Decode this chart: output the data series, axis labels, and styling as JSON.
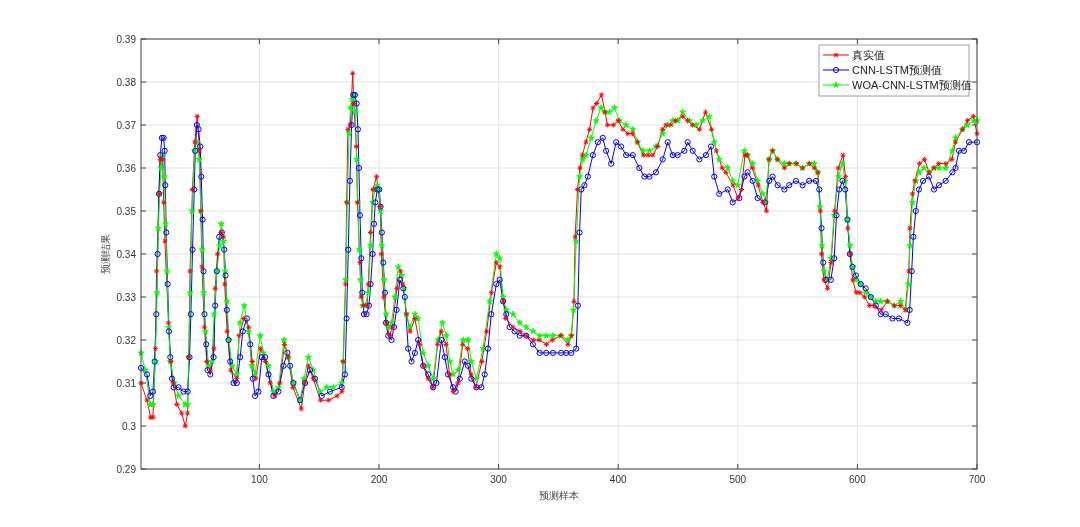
{
  "chart_data": {
    "type": "line",
    "xlabel": "预测样本",
    "ylabel": "预测结果",
    "xlim": [
      1,
      700
    ],
    "xticks": [
      100,
      200,
      300,
      400,
      500,
      600,
      700
    ],
    "ylim": [
      0.29,
      0.39
    ],
    "yticks": [
      0.29,
      0.3,
      0.31,
      0.32,
      0.33,
      0.34,
      0.35,
      0.36,
      0.37,
      0.38,
      0.39
    ],
    "grid": true,
    "legend": "top right",
    "line_style": "solid",
    "series": [
      {
        "name": "真实值",
        "color": "#ff0000",
        "marker": "cross",
        "x": [
          1,
          6,
          9,
          11,
          13,
          14,
          16,
          17,
          19,
          20,
          21,
          24,
          26,
          28,
          31,
          35,
          38,
          40,
          41,
          42,
          44,
          46,
          48,
          50,
          51,
          52,
          54,
          56,
          59,
          62,
          63,
          65,
          68,
          70,
          71,
          73,
          76,
          81,
          83,
          87,
          91,
          94,
          97,
          101,
          105,
          109,
          113,
          117,
          121,
          124,
          128,
          135,
          138,
          141,
          145,
          151,
          158,
          165,
          169,
          170,
          172,
          173,
          174,
          176,
          178,
          179,
          181,
          182,
          184,
          185,
          187,
          190,
          191,
          193,
          195,
          198,
          201,
          202,
          204,
          206,
          209,
          211,
          215,
          218,
          220,
          223,
          226,
          230,
          234,
          237,
          241,
          245,
          249,
          252,
          256,
          259,
          262,
          266,
          270,
          274,
          277,
          281,
          286,
          290,
          294,
          298,
          301,
          304,
          306,
          312,
          318,
          323,
          329,
          334,
          340,
          345,
          352,
          358,
          361,
          363,
          364,
          366,
          368,
          370,
          373,
          376,
          379,
          382,
          386,
          389,
          391,
          396,
          400,
          404,
          408,
          412,
          416,
          421,
          425,
          429,
          433,
          437,
          440,
          444,
          448,
          454,
          458,
          462,
          468,
          473,
          478,
          482,
          487,
          490,
          496,
          500,
          503,
          506,
          508,
          512,
          517,
          521,
          524,
          526,
          529,
          533,
          539,
          543,
          549,
          554,
          560,
          564,
          567,
          569,
          570,
          572,
          575,
          578,
          581,
          584,
          588,
          590,
          592,
          594,
          596,
          599,
          602,
          606,
          610,
          614,
          620,
          625,
          631,
          636,
          640,
          643,
          644,
          646,
          648,
          652,
          656,
          660,
          664,
          668,
          674,
          679,
          682,
          688,
          692,
          697,
          700
        ],
        "values": [
          0.31,
          0.306,
          0.302,
          0.302,
          0.318,
          0.336,
          0.354,
          0.362,
          0.362,
          0.352,
          0.343,
          0.324,
          0.315,
          0.31,
          0.305,
          0.303,
          0.3,
          0.303,
          0.316,
          0.336,
          0.355,
          0.366,
          0.372,
          0.364,
          0.35,
          0.337,
          0.323,
          0.315,
          0.313,
          0.318,
          0.332,
          0.34,
          0.345,
          0.344,
          0.333,
          0.322,
          0.313,
          0.311,
          0.321,
          0.325,
          0.323,
          0.315,
          0.311,
          0.318,
          0.315,
          0.31,
          0.307,
          0.31,
          0.319,
          0.316,
          0.309,
          0.304,
          0.31,
          0.314,
          0.311,
          0.306,
          0.306,
          0.307,
          0.308,
          0.315,
          0.333,
          0.352,
          0.369,
          0.37,
          0.382,
          0.375,
          0.365,
          0.352,
          0.338,
          0.33,
          0.328,
          0.328,
          0.333,
          0.345,
          0.355,
          0.358,
          0.351,
          0.34,
          0.33,
          0.324,
          0.321,
          0.323,
          0.332,
          0.336,
          0.333,
          0.326,
          0.322,
          0.325,
          0.319,
          0.314,
          0.311,
          0.309,
          0.319,
          0.322,
          0.319,
          0.312,
          0.308,
          0.31,
          0.319,
          0.318,
          0.312,
          0.309,
          0.315,
          0.322,
          0.331,
          0.338,
          0.337,
          0.329,
          0.325,
          0.323,
          0.322,
          0.321,
          0.32,
          0.32,
          0.319,
          0.32,
          0.321,
          0.319,
          0.321,
          0.329,
          0.344,
          0.355,
          0.36,
          0.363,
          0.366,
          0.369,
          0.374,
          0.375,
          0.377,
          0.373,
          0.37,
          0.37,
          0.371,
          0.369,
          0.368,
          0.368,
          0.366,
          0.363,
          0.363,
          0.363,
          0.365,
          0.369,
          0.37,
          0.37,
          0.371,
          0.372,
          0.371,
          0.37,
          0.369,
          0.373,
          0.369,
          0.364,
          0.36,
          0.359,
          0.356,
          0.353,
          0.355,
          0.363,
          0.363,
          0.36,
          0.356,
          0.352,
          0.35,
          0.362,
          0.364,
          0.362,
          0.36,
          0.361,
          0.361,
          0.36,
          0.361,
          0.36,
          0.359,
          0.35,
          0.34,
          0.334,
          0.332,
          0.338,
          0.35,
          0.36,
          0.363,
          0.358,
          0.346,
          0.34,
          0.334,
          0.331,
          0.331,
          0.33,
          0.328,
          0.328,
          0.327,
          0.329,
          0.328,
          0.328,
          0.327,
          0.336,
          0.346,
          0.354,
          0.357,
          0.361,
          0.362,
          0.359,
          0.36,
          0.361,
          0.361,
          0.362,
          0.366,
          0.369,
          0.371,
          0.372,
          0.368
        ]
      },
      {
        "name": "CNN-LSTM预测值",
        "color": "#0000ff",
        "marker": "circle",
        "x": [
          1,
          6,
          8.8,
          11,
          12.4,
          13.8,
          14.9,
          16,
          17.1,
          18.5,
          19.9,
          20.8,
          21.3,
          22.1,
          23.3,
          24.4,
          25.5,
          26.9,
          28.3,
          32.4,
          36.6,
          40,
          41.6,
          42.7,
          44.1,
          45.5,
          46.4,
          47.7,
          49.1,
          50.5,
          51.4,
          52.5,
          53.3,
          54.1,
          55.5,
          56.6,
          58.9,
          61.7,
          63,
          64.4,
          66.4,
          68.6,
          70.6,
          71.7,
          72.8,
          74.2,
          75.6,
          78.4,
          81.1,
          83.9,
          86.1,
          89.5,
          92.3,
          94.5,
          96.4,
          99.2,
          102,
          104.8,
          107.6,
          111.7,
          115.9,
          120.1,
          123.4,
          125.7,
          128.4,
          134,
          138.2,
          142.3,
          146.5,
          152.1,
          159,
          168.8,
          171.6,
          172.9,
          174.3,
          175.7,
          177.1,
          178.5,
          179.9,
          181.3,
          182.4,
          183.2,
          184.1,
          185.2,
          186,
          187.4,
          189.6,
          191.6,
          193,
          194.7,
          195.8,
          196.9,
          198.6,
          200.2,
          201.3,
          202.4,
          203.6,
          205,
          205.8,
          207.7,
          210.5,
          212.5,
          214.7,
          217.5,
          220.3,
          221.6,
          224.4,
          227.2,
          230,
          232.7,
          236.9,
          241.1,
          245.2,
          248,
          252.2,
          255,
          257.7,
          261.9,
          264.1,
          267.5,
          271.7,
          274.4,
          277.2,
          281.4,
          285.6,
          288.4,
          291.1,
          293.9,
          298.1,
          300.9,
          303.7,
          306.4,
          309.2,
          313.4,
          317.6,
          323.1,
          328.7,
          334.3,
          339.8,
          345.4,
          352.3,
          356.5,
          360.7,
          364.9,
          366.3,
          367.7,
          369.1,
          371.8,
          374.6,
          378.8,
          383,
          387.1,
          389.9,
          394.1,
          398.3,
          402.4,
          406.6,
          412.2,
          417.7,
          421.9,
          426.1,
          431.6,
          437.2,
          441.4,
          445.6,
          449.7,
          455.3,
          458.1,
          462.3,
          467.8,
          473.4,
          477.6,
          480.3,
          484.5,
          491.6,
          495.7,
          501.3,
          505.5,
          508.2,
          512.4,
          516.6,
          522.7,
          526.3,
          529.1,
          533.3,
          538.9,
          543,
          548.6,
          554.2,
          559.7,
          565.3,
          568.1,
          570,
          571.4,
          573.6,
          577.8,
          580.6,
          582.5,
          584.8,
          587.5,
          589.8,
          591.7,
          593.7,
          595.9,
          598.7,
          602.8,
          607,
          611.2,
          615.4,
          619.5,
          623.7,
          629.3,
          634.8,
          641.8,
          643.7,
          645.4,
          646.8,
          648.8,
          651.5,
          654.9,
          659.9,
          664.1,
          668.2,
          673.8,
          679.4,
          682.1,
          684.9,
          689.1,
          693.3,
          700
        ],
        "values": [
          0.3135,
          0.312,
          0.307,
          0.308,
          0.315,
          0.326,
          0.34,
          0.354,
          0.363,
          0.367,
          0.367,
          0.364,
          0.356,
          0.345,
          0.333,
          0.322,
          0.316,
          0.311,
          0.309,
          0.309,
          0.308,
          0.308,
          0.316,
          0.326,
          0.341,
          0.355,
          0.364,
          0.37,
          0.369,
          0.365,
          0.358,
          0.348,
          0.336,
          0.326,
          0.319,
          0.313,
          0.312,
          0.316,
          0.328,
          0.336,
          0.344,
          0.345,
          0.341,
          0.335,
          0.327,
          0.32,
          0.315,
          0.31,
          0.31,
          0.316,
          0.322,
          0.325,
          0.319,
          0.311,
          0.307,
          0.308,
          0.316,
          0.316,
          0.312,
          0.307,
          0.308,
          0.314,
          0.317,
          0.314,
          0.31,
          0.306,
          0.31,
          0.313,
          0.311,
          0.307,
          0.308,
          0.309,
          0.312,
          0.325,
          0.341,
          0.357,
          0.37,
          0.377,
          0.377,
          0.375,
          0.369,
          0.36,
          0.349,
          0.339,
          0.331,
          0.326,
          0.326,
          0.328,
          0.333,
          0.34,
          0.347,
          0.352,
          0.355,
          0.355,
          0.351,
          0.345,
          0.338,
          0.331,
          0.324,
          0.321,
          0.32,
          0.323,
          0.327,
          0.334,
          0.332,
          0.33,
          0.318,
          0.315,
          0.317,
          0.32,
          0.314,
          0.312,
          0.309,
          0.31,
          0.32,
          0.316,
          0.312,
          0.309,
          0.308,
          0.311,
          0.315,
          0.314,
          0.311,
          0.309,
          0.309,
          0.312,
          0.318,
          0.326,
          0.333,
          0.334,
          0.329,
          0.326,
          0.323,
          0.322,
          0.321,
          0.321,
          0.319,
          0.317,
          0.317,
          0.317,
          0.317,
          0.317,
          0.317,
          0.318,
          0.328,
          0.345,
          0.355,
          0.356,
          0.358,
          0.363,
          0.366,
          0.367,
          0.364,
          0.361,
          0.366,
          0.365,
          0.363,
          0.363,
          0.36,
          0.358,
          0.358,
          0.359,
          0.362,
          0.366,
          0.363,
          0.363,
          0.364,
          0.366,
          0.364,
          0.362,
          0.363,
          0.365,
          0.358,
          0.354,
          0.355,
          0.352,
          0.353,
          0.358,
          0.359,
          0.357,
          0.353,
          0.352,
          0.357,
          0.358,
          0.356,
          0.355,
          0.356,
          0.357,
          0.356,
          0.357,
          0.357,
          0.355,
          0.346,
          0.338,
          0.334,
          0.334,
          0.339,
          0.349,
          0.355,
          0.357,
          0.355,
          0.348,
          0.34,
          0.337,
          0.335,
          0.333,
          0.332,
          0.33,
          0.328,
          0.326,
          0.326,
          0.325,
          0.325,
          0.324,
          0.327,
          0.336,
          0.344,
          0.35,
          0.355,
          0.357,
          0.358,
          0.355,
          0.356,
          0.357,
          0.359,
          0.36,
          0.364,
          0.364,
          0.366,
          0.366
        ]
      },
      {
        "name": "WOA-CNN-LSTM预测值",
        "color": "#00ff00",
        "marker": "star",
        "x": [
          1,
          4.6,
          8.8,
          11,
          13,
          14.4,
          15.5,
          16.6,
          17.7,
          19.1,
          20.5,
          21.6,
          22.7,
          24.1,
          25.5,
          28.8,
          32.4,
          38,
          40,
          40.8,
          42.2,
          43.6,
          45.8,
          47.7,
          49.7,
          51.1,
          52.2,
          53.3,
          55,
          57.5,
          60.3,
          62.2,
          64.4,
          66.7,
          68.1,
          70,
          71.4,
          72.8,
          74.5,
          77,
          81.1,
          83.9,
          87.3,
          90.9,
          93.7,
          96.4,
          100.6,
          103.4,
          107.6,
          111.7,
          115.9,
          120.6,
          124.3,
          128.4,
          134,
          137.3,
          141,
          145.1,
          150.7,
          156.3,
          161.8,
          168.8,
          170.2,
          172.1,
          173.5,
          174.9,
          176.3,
          177.7,
          179.1,
          180.2,
          181.3,
          182.4,
          183.5,
          184.6,
          186.3,
          188.5,
          191,
          193,
          194.7,
          196.6,
          198.6,
          200.2,
          201.3,
          202.4,
          204.1,
          205.8,
          207.7,
          210.5,
          213.3,
          216.1,
          218.9,
          220.8,
          223,
          225.8,
          230,
          232.7,
          236.9,
          241.1,
          245.2,
          249.4,
          253,
          256.4,
          259.1,
          261.9,
          266.1,
          270.3,
          274.4,
          277.2,
          281.4,
          287,
          292.5,
          298.1,
          300.9,
          303.7,
          306.4,
          312,
          317.6,
          323.1,
          328.7,
          334.3,
          339.8,
          345.4,
          352.3,
          357.9,
          360.7,
          362.6,
          364.9,
          367.7,
          370.4,
          373.2,
          377.4,
          381.6,
          385.7,
          388.5,
          392.7,
          396.9,
          401,
          406.6,
          412.2,
          416.3,
          420.5,
          426.1,
          431.6,
          437.2,
          441.4,
          445.6,
          449.7,
          453.9,
          459.5,
          465,
          470.6,
          476.2,
          480.3,
          484.5,
          491.6,
          495.7,
          499.9,
          505.5,
          508.2,
          512.4,
          516.6,
          520.8,
          523.5,
          526.3,
          529.1,
          533.3,
          538.9,
          543,
          548.6,
          554.2,
          559.7,
          563.9,
          566.7,
          568.6,
          570.3,
          572.2,
          575,
          577.8,
          580.6,
          584.2,
          587.5,
          589.8,
          591.7,
          593.7,
          595.9,
          598.7,
          602.8,
          607,
          611.2,
          615.4,
          619.5,
          625.1,
          630.7,
          636.2,
          640.4,
          642.6,
          644,
          646,
          648.8,
          651.5,
          655.7,
          659.9,
          664.1,
          668.2,
          673.8,
          679.4,
          682.1,
          687.7,
          691.9,
          697.4,
          700
        ],
        "values": [
          0.317,
          0.313,
          0.305,
          0.305,
          0.315,
          0.331,
          0.346,
          0.354,
          0.36,
          0.363,
          0.358,
          0.347,
          0.336,
          0.323,
          0.315,
          0.31,
          0.307,
          0.305,
          0.305,
          0.316,
          0.331,
          0.35,
          0.364,
          0.366,
          0.362,
          0.35,
          0.341,
          0.331,
          0.322,
          0.314,
          0.315,
          0.326,
          0.336,
          0.342,
          0.347,
          0.343,
          0.336,
          0.329,
          0.32,
          0.314,
          0.312,
          0.324,
          0.328,
          0.322,
          0.314,
          0.312,
          0.321,
          0.317,
          0.314,
          0.308,
          0.309,
          0.32,
          0.316,
          0.31,
          0.306,
          0.311,
          0.316,
          0.313,
          0.308,
          0.309,
          0.309,
          0.31,
          0.315,
          0.334,
          0.352,
          0.368,
          0.374,
          0.376,
          0.377,
          0.373,
          0.362,
          0.352,
          0.341,
          0.334,
          0.328,
          0.328,
          0.331,
          0.342,
          0.352,
          0.355,
          0.356,
          0.355,
          0.35,
          0.342,
          0.334,
          0.326,
          0.323,
          0.324,
          0.33,
          0.337,
          0.335,
          0.332,
          0.326,
          0.323,
          0.326,
          0.325,
          0.317,
          0.314,
          0.311,
          0.32,
          0.324,
          0.321,
          0.315,
          0.312,
          0.313,
          0.32,
          0.32,
          0.315,
          0.311,
          0.318,
          0.329,
          0.34,
          0.339,
          0.33,
          0.327,
          0.326,
          0.324,
          0.323,
          0.322,
          0.321,
          0.321,
          0.321,
          0.321,
          0.32,
          0.321,
          0.327,
          0.343,
          0.358,
          0.362,
          0.363,
          0.367,
          0.371,
          0.374,
          0.373,
          0.373,
          0.374,
          0.371,
          0.37,
          0.369,
          0.366,
          0.364,
          0.364,
          0.365,
          0.368,
          0.37,
          0.371,
          0.371,
          0.373,
          0.371,
          0.37,
          0.371,
          0.372,
          0.366,
          0.362,
          0.36,
          0.357,
          0.356,
          0.364,
          0.363,
          0.361,
          0.357,
          0.354,
          0.352,
          0.362,
          0.364,
          0.362,
          0.361,
          0.361,
          0.361,
          0.36,
          0.361,
          0.361,
          0.359,
          0.351,
          0.342,
          0.336,
          0.334,
          0.339,
          0.349,
          0.358,
          0.361,
          0.357,
          0.348,
          0.342,
          0.337,
          0.334,
          0.333,
          0.331,
          0.33,
          0.329,
          0.329,
          0.329,
          0.328,
          0.329,
          0.327,
          0.333,
          0.342,
          0.352,
          0.357,
          0.359,
          0.36,
          0.359,
          0.36,
          0.36,
          0.36,
          0.364,
          0.367,
          0.369,
          0.37,
          0.371,
          0.371
        ]
      }
    ]
  }
}
